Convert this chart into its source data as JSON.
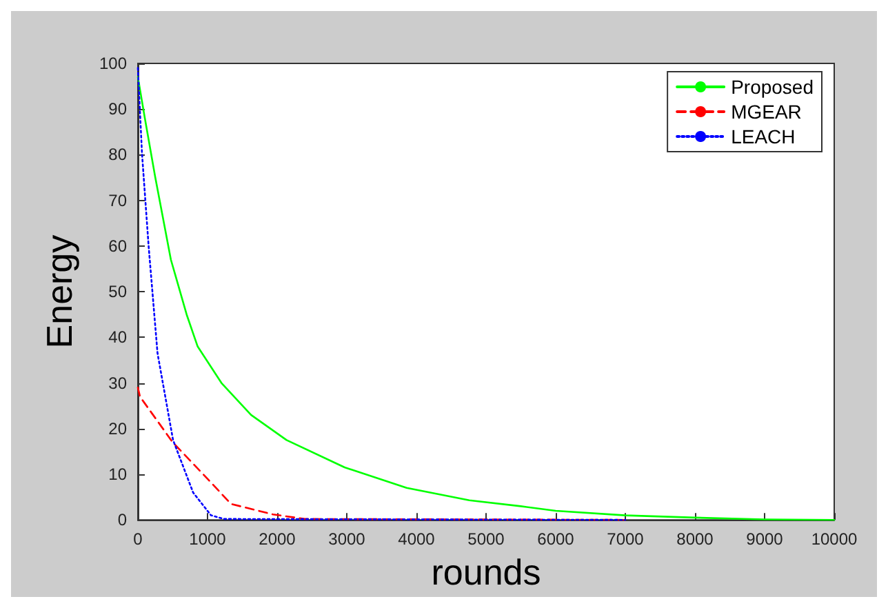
{
  "chart_data": {
    "type": "line",
    "xlabel": "rounds",
    "ylabel": "Energy",
    "xlim": [
      0,
      10000
    ],
    "xticks": [
      0,
      1000,
      2000,
      3000,
      4000,
      5000,
      6000,
      7000,
      8000,
      9000,
      10000
    ],
    "ylim": [
      0,
      100
    ],
    "yticks": [
      0,
      10,
      20,
      30,
      40,
      50,
      60,
      70,
      80,
      90,
      100
    ],
    "grid": false,
    "legend": "top right",
    "marker": "none",
    "series": [
      {
        "name": "Proposed",
        "color": "#00ff00",
        "line_style": "solid",
        "x": [
          0,
          100,
          250,
          474,
          700,
          858,
          1200,
          1625,
          2135,
          2969,
          3860,
          4760,
          5500,
          6000,
          7000,
          8000,
          9000,
          10000
        ],
        "values": [
          97,
          88,
          75,
          57,
          45,
          38,
          30,
          23,
          17.5,
          11.5,
          7,
          4.3,
          3,
          2,
          1,
          0.5,
          0.1,
          0
        ]
      },
      {
        "name": "MGEAR",
        "color": "#ff0000",
        "line_style": "dashed",
        "x": [
          0,
          30,
          500,
          1000,
          1338,
          1940,
          2400,
          7000
        ],
        "values": [
          29,
          27,
          17,
          9,
          3.5,
          1.2,
          0.2,
          0
        ]
      },
      {
        "name": "LEACH",
        "color": "#0000ff",
        "line_style": "dotted",
        "x": [
          0,
          58,
          154,
          282,
          505,
          793,
          1050,
          1240,
          7000
        ],
        "values": [
          99,
          80.5,
          60,
          36.5,
          17.5,
          6,
          1,
          0.2,
          0
        ]
      }
    ]
  }
}
